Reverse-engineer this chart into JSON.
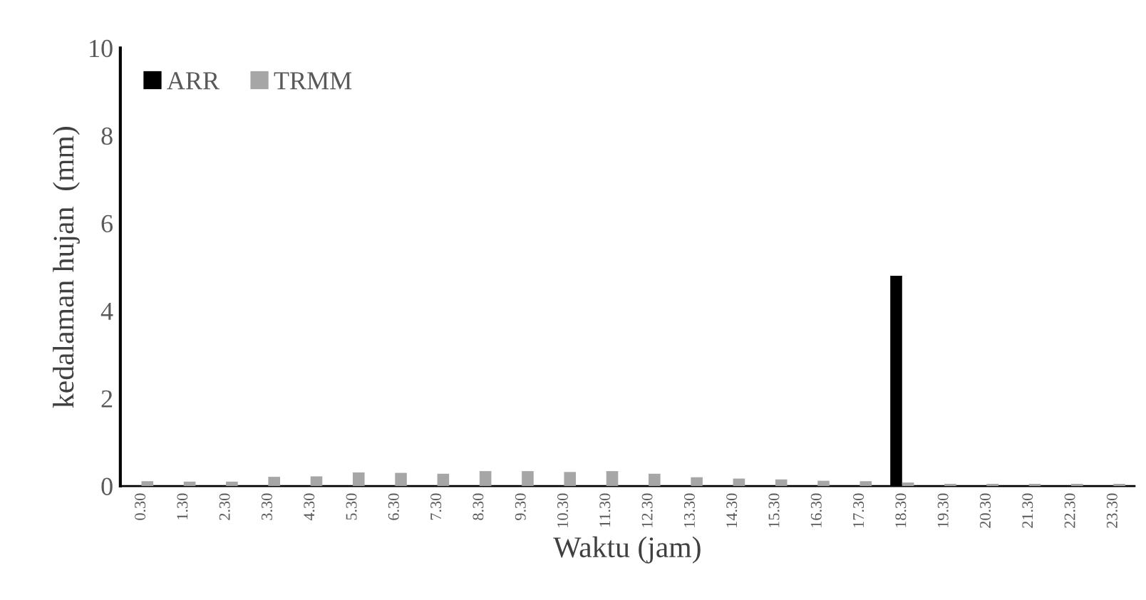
{
  "chart_data": {
    "type": "bar",
    "xlabel": "Waktu (jam)",
    "ylabel": "kedalaman hujan  (mm)",
    "categories": [
      "0.30",
      "1.30",
      "2.30",
      "3.30",
      "4.30",
      "5.30",
      "6.30",
      "7.30",
      "8.30",
      "9.30",
      "10.30",
      "11.30",
      "12.30",
      "13.30",
      "14.30",
      "15.30",
      "16.30",
      "17.30",
      "18.30",
      "19.30",
      "20.30",
      "21.30",
      "22.30",
      "23.30"
    ],
    "series": [
      {
        "name": "ARR",
        "color": "#000000",
        "values": [
          0,
          0,
          0,
          0,
          0,
          0,
          0,
          0,
          0,
          0,
          0,
          0,
          0,
          0,
          0,
          0,
          0,
          0,
          4.8,
          0,
          0,
          0,
          0,
          0
        ]
      },
      {
        "name": "TRMM",
        "color": "#a6a6a6",
        "values": [
          0.11,
          0.1,
          0.1,
          0.21,
          0.22,
          0.31,
          0.3,
          0.28,
          0.34,
          0.34,
          0.32,
          0.34,
          0.28,
          0.2,
          0.17,
          0.15,
          0.12,
          0.11,
          0.08,
          0.05,
          0.05,
          0.05,
          0.05,
          0.05
        ]
      }
    ],
    "ylim": [
      0,
      10
    ],
    "yticks": [
      0,
      2,
      4,
      6,
      8,
      10
    ],
    "grid": false,
    "legend": "top left"
  }
}
